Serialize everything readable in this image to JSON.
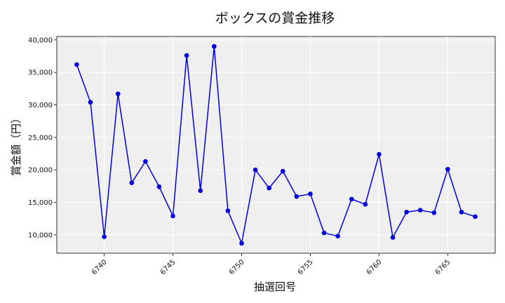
{
  "chart_data": {
    "type": "line",
    "title": "ボックスの賞金推移",
    "xlabel": "抽選回号",
    "ylabel": "賞金額（円）",
    "x": [
      6738,
      6739,
      6740,
      6741,
      6742,
      6743,
      6744,
      6745,
      6746,
      6747,
      6748,
      6749,
      6750,
      6751,
      6752,
      6753,
      6754,
      6755,
      6756,
      6757,
      6758,
      6759,
      6760,
      6761,
      6762,
      6763,
      6764,
      6765,
      6766,
      6767
    ],
    "series": [
      {
        "values": [
          36200,
          30400,
          9700,
          31700,
          18000,
          21300,
          17400,
          12900,
          37600,
          16800,
          39000,
          13700,
          8700,
          20000,
          17200,
          19800,
          15900,
          16300,
          10300,
          9800,
          15500,
          14700,
          22400,
          9600,
          13500,
          13800,
          13400,
          20100,
          13500,
          12800
        ],
        "color": "#0000dd"
      }
    ],
    "xticks": [
      "6740",
      "6745",
      "6750",
      "6755",
      "6760",
      "6765"
    ],
    "yticks": [
      "10,000",
      "15,000",
      "20,000",
      "25,000",
      "30,000",
      "35,000",
      "40,000"
    ],
    "xlim": [
      6736.55,
      6768.45
    ],
    "ylim": [
      7175,
      40525
    ],
    "grid": true,
    "background": "#efefef"
  }
}
